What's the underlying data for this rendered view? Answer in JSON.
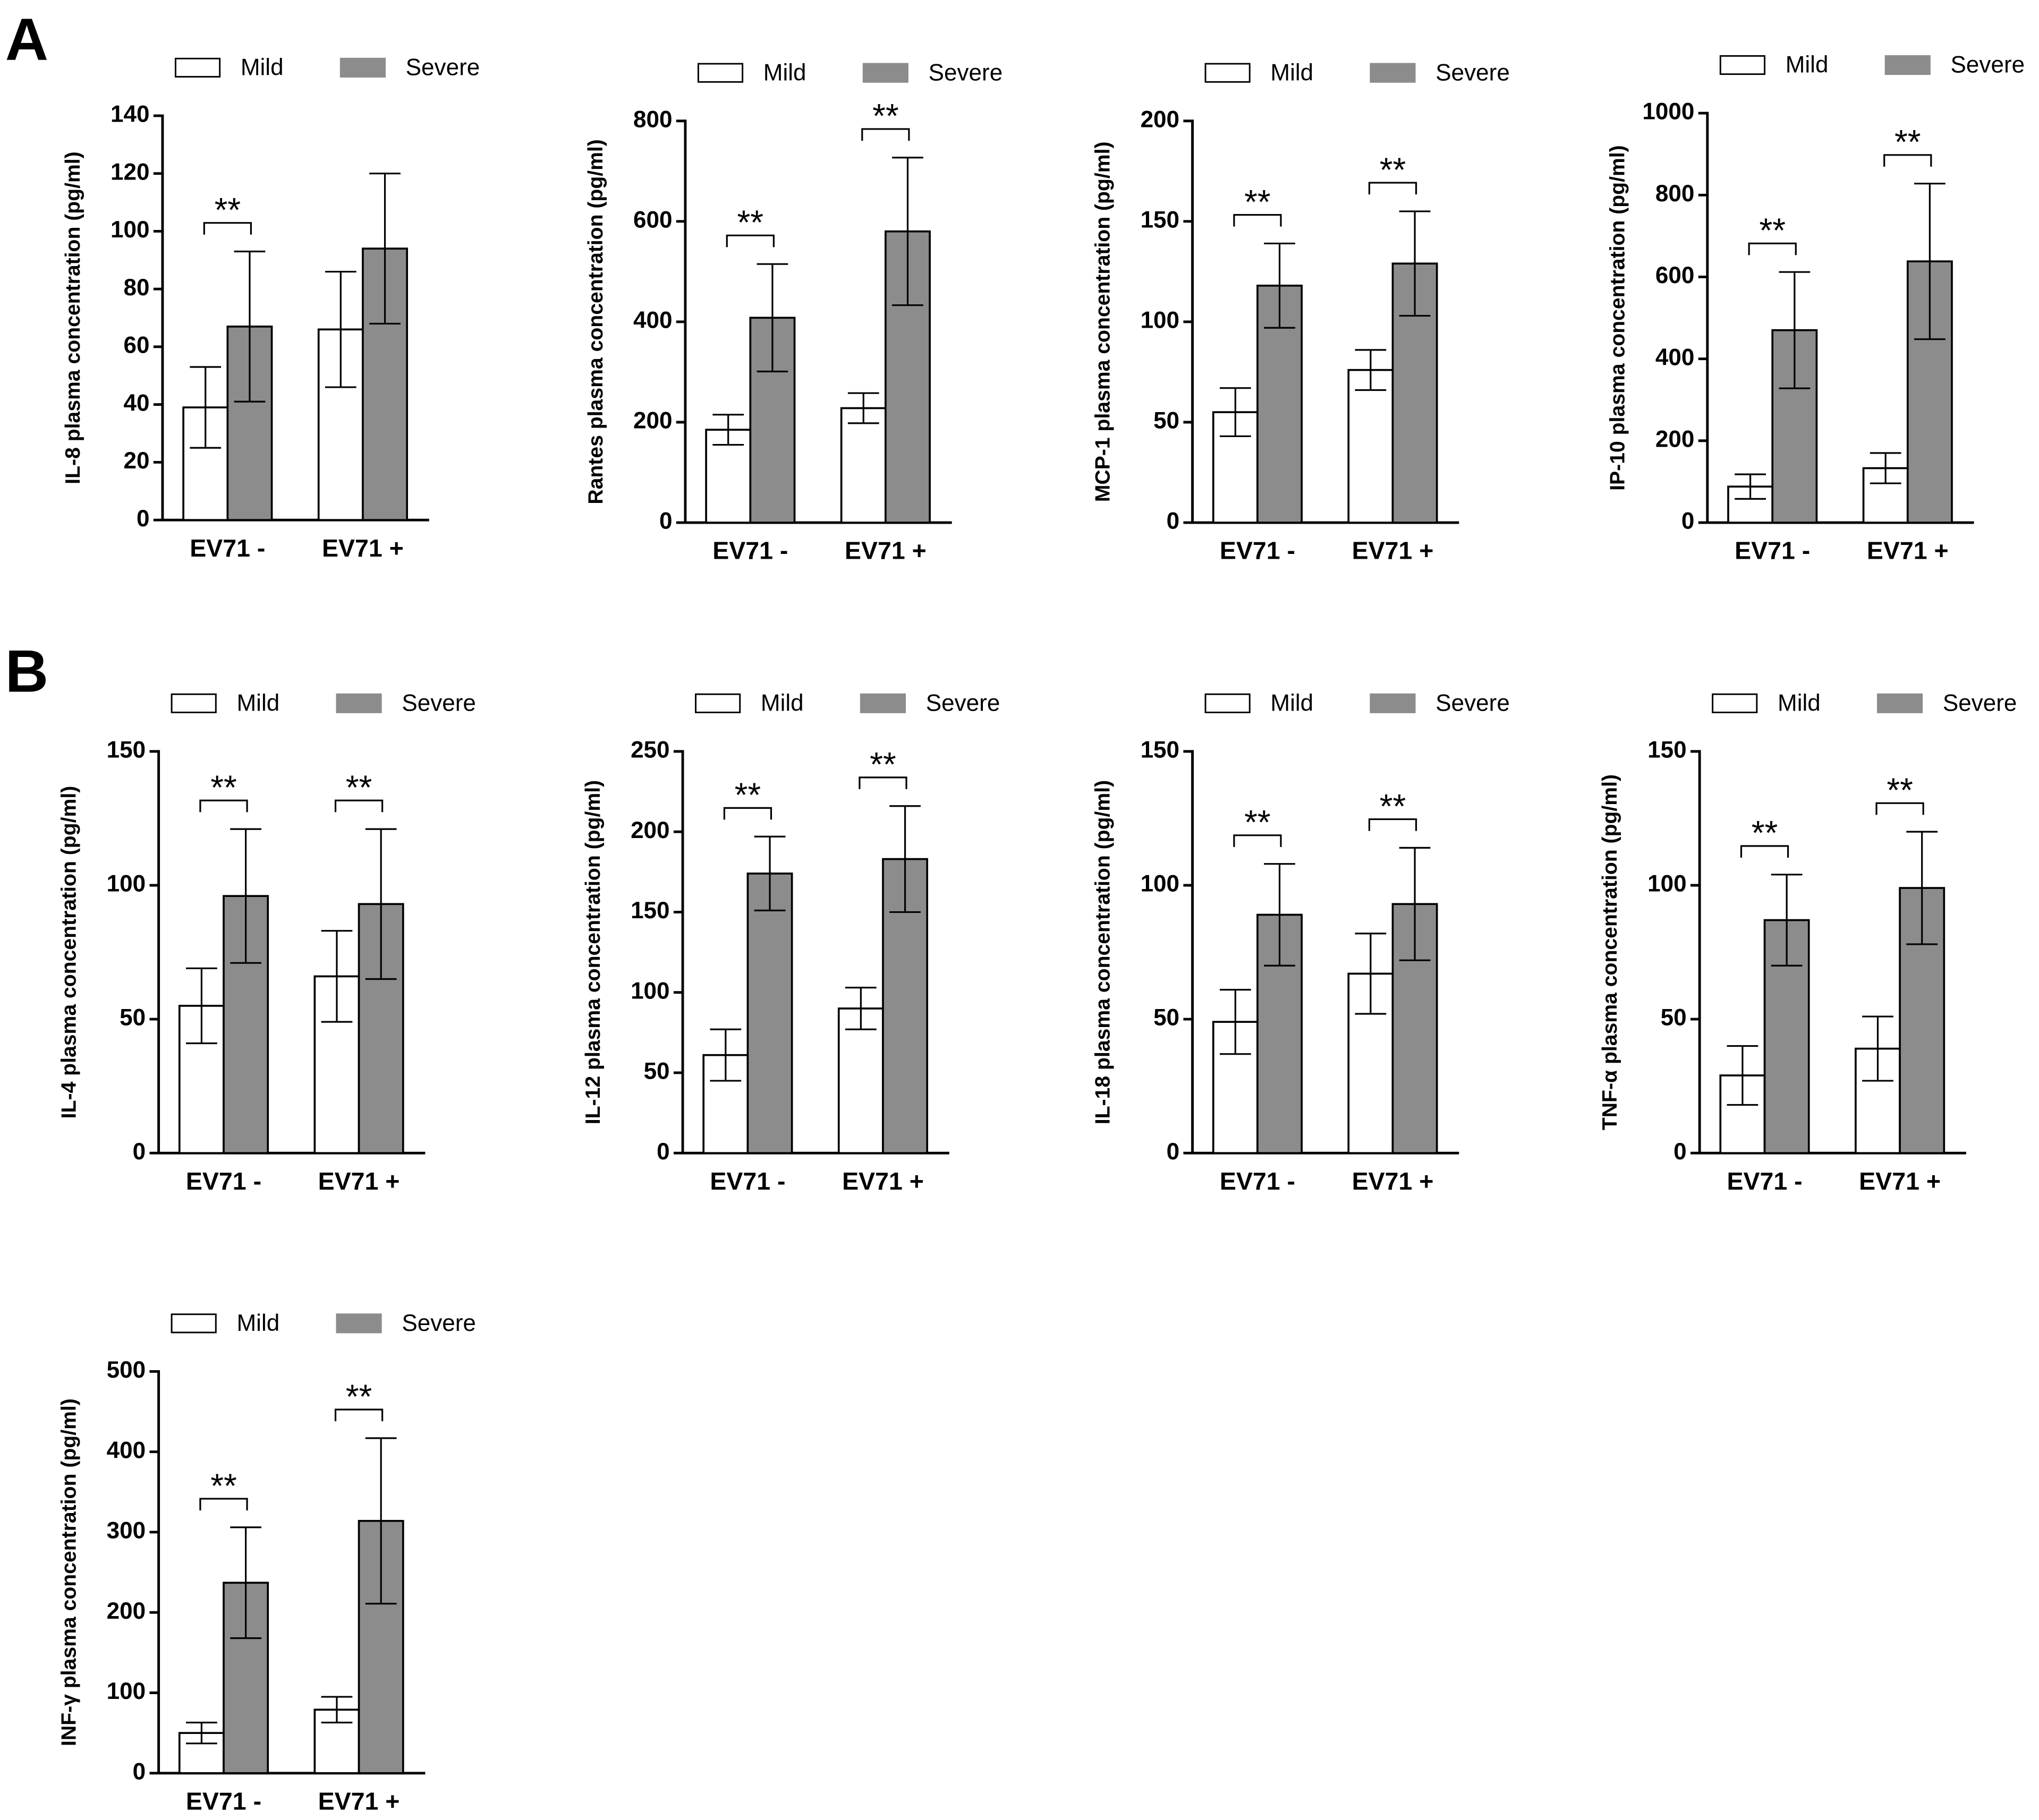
{
  "panel_labels": [
    "A",
    "B"
  ],
  "chart_data": [
    {
      "type": "bar",
      "y_label": "IL-8 plasma concentration (pg/ml)",
      "categories": [
        "EV71 -",
        "EV71 +"
      ],
      "series": [
        {
          "name": "Mild",
          "color": "#ffffff",
          "values": [
            39,
            66
          ],
          "errors": [
            14,
            20
          ]
        },
        {
          "name": "Severe",
          "color": "#8c8c8c",
          "values": [
            67,
            94
          ],
          "errors": [
            26,
            26
          ]
        }
      ],
      "annotations": [
        "**",
        null
      ],
      "ylim": [
        0,
        140
      ],
      "yticks": [
        0,
        20,
        40,
        60,
        80,
        100,
        120,
        140
      ]
    },
    {
      "type": "bar",
      "y_label": "Rantes plasma concentration (pg/ml)",
      "categories": [
        "EV71 -",
        "EV71 +"
      ],
      "series": [
        {
          "name": "Mild",
          "color": "#ffffff",
          "values": [
            185,
            228
          ],
          "errors": [
            30,
            30
          ]
        },
        {
          "name": "Severe",
          "color": "#8c8c8c",
          "values": [
            408,
            580
          ],
          "errors": [
            107,
            147
          ]
        }
      ],
      "annotations": [
        "**",
        "**"
      ],
      "ylim": [
        0,
        800
      ],
      "yticks": [
        0,
        200,
        400,
        600,
        800
      ]
    },
    {
      "type": "bar",
      "y_label": "MCP-1 plasma concentration (pg/ml)",
      "categories": [
        "EV71 -",
        "EV71 +"
      ],
      "series": [
        {
          "name": "Mild",
          "color": "#ffffff",
          "values": [
            55,
            76
          ],
          "errors": [
            12,
            10
          ]
        },
        {
          "name": "Severe",
          "color": "#8c8c8c",
          "values": [
            118,
            129
          ],
          "errors": [
            21,
            26
          ]
        }
      ],
      "annotations": [
        "**",
        "**"
      ],
      "ylim": [
        0,
        200
      ],
      "yticks": [
        0,
        50,
        100,
        150,
        200
      ]
    },
    {
      "type": "bar",
      "y_label": "IP-10 plasma concentration (pg/ml)",
      "categories": [
        "EV71 -",
        "EV71 +"
      ],
      "series": [
        {
          "name": "Mild",
          "color": "#ffffff",
          "values": [
            88,
            133
          ],
          "errors": [
            30,
            37
          ]
        },
        {
          "name": "Severe",
          "color": "#8c8c8c",
          "values": [
            470,
            638
          ],
          "errors": [
            142,
            190
          ]
        }
      ],
      "annotations": [
        "**",
        "**"
      ],
      "ylim": [
        0,
        1000
      ],
      "yticks": [
        0,
        200,
        400,
        600,
        800,
        1000
      ]
    },
    {
      "type": "bar",
      "y_label": "IL-4 plasma concentration (pg/ml)",
      "categories": [
        "EV71 -",
        "EV71 +"
      ],
      "series": [
        {
          "name": "Mild",
          "color": "#ffffff",
          "values": [
            55,
            66
          ],
          "errors": [
            14,
            17
          ]
        },
        {
          "name": "Severe",
          "color": "#8c8c8c",
          "values": [
            96,
            93
          ],
          "errors": [
            25,
            28
          ]
        }
      ],
      "annotations": [
        "**",
        "**"
      ],
      "ylim": [
        0,
        150
      ],
      "yticks": [
        0,
        50,
        100,
        150
      ]
    },
    {
      "type": "bar",
      "y_label": "IL-12 plasma concentration (pg/ml)",
      "categories": [
        "EV71 -",
        "EV71 +"
      ],
      "series": [
        {
          "name": "Mild",
          "color": "#ffffff",
          "values": [
            61,
            90
          ],
          "errors": [
            16,
            13
          ]
        },
        {
          "name": "Severe",
          "color": "#8c8c8c",
          "values": [
            174,
            183
          ],
          "errors": [
            23,
            33
          ]
        }
      ],
      "annotations": [
        "**",
        "**"
      ],
      "ylim": [
        0,
        250
      ],
      "yticks": [
        0,
        50,
        100,
        150,
        200,
        250
      ]
    },
    {
      "type": "bar",
      "y_label": "IL-18 plasma concentration (pg/ml)",
      "categories": [
        "EV71 -",
        "EV71 +"
      ],
      "series": [
        {
          "name": "Mild",
          "color": "#ffffff",
          "values": [
            49,
            67
          ],
          "errors": [
            12,
            15
          ]
        },
        {
          "name": "Severe",
          "color": "#8c8c8c",
          "values": [
            89,
            93
          ],
          "errors": [
            19,
            21
          ]
        }
      ],
      "annotations": [
        "**",
        "**"
      ],
      "ylim": [
        0,
        150
      ],
      "yticks": [
        0,
        50,
        100,
        150
      ]
    },
    {
      "type": "bar",
      "y_label": "TNF-α plasma concentration (pg/ml)",
      "categories": [
        "EV71 -",
        "EV71 +"
      ],
      "series": [
        {
          "name": "Mild",
          "color": "#ffffff",
          "values": [
            29,
            39
          ],
          "errors": [
            11,
            12
          ]
        },
        {
          "name": "Severe",
          "color": "#8c8c8c",
          "values": [
            87,
            99
          ],
          "errors": [
            17,
            21
          ]
        }
      ],
      "annotations": [
        "**",
        "**"
      ],
      "ylim": [
        0,
        150
      ],
      "yticks": [
        0,
        50,
        100,
        150
      ]
    },
    {
      "type": "bar",
      "y_label": "INF-γ plasma concentration (pg/ml)",
      "categories": [
        "EV71 -",
        "EV71 +"
      ],
      "series": [
        {
          "name": "Mild",
          "color": "#ffffff",
          "values": [
            50,
            79
          ],
          "errors": [
            13,
            16
          ]
        },
        {
          "name": "Severe",
          "color": "#8c8c8c",
          "values": [
            237,
            314
          ],
          "errors": [
            69,
            103
          ]
        }
      ],
      "annotations": [
        "**",
        "**"
      ],
      "ylim": [
        0,
        500
      ],
      "yticks": [
        0,
        100,
        200,
        300,
        400,
        500
      ]
    }
  ]
}
